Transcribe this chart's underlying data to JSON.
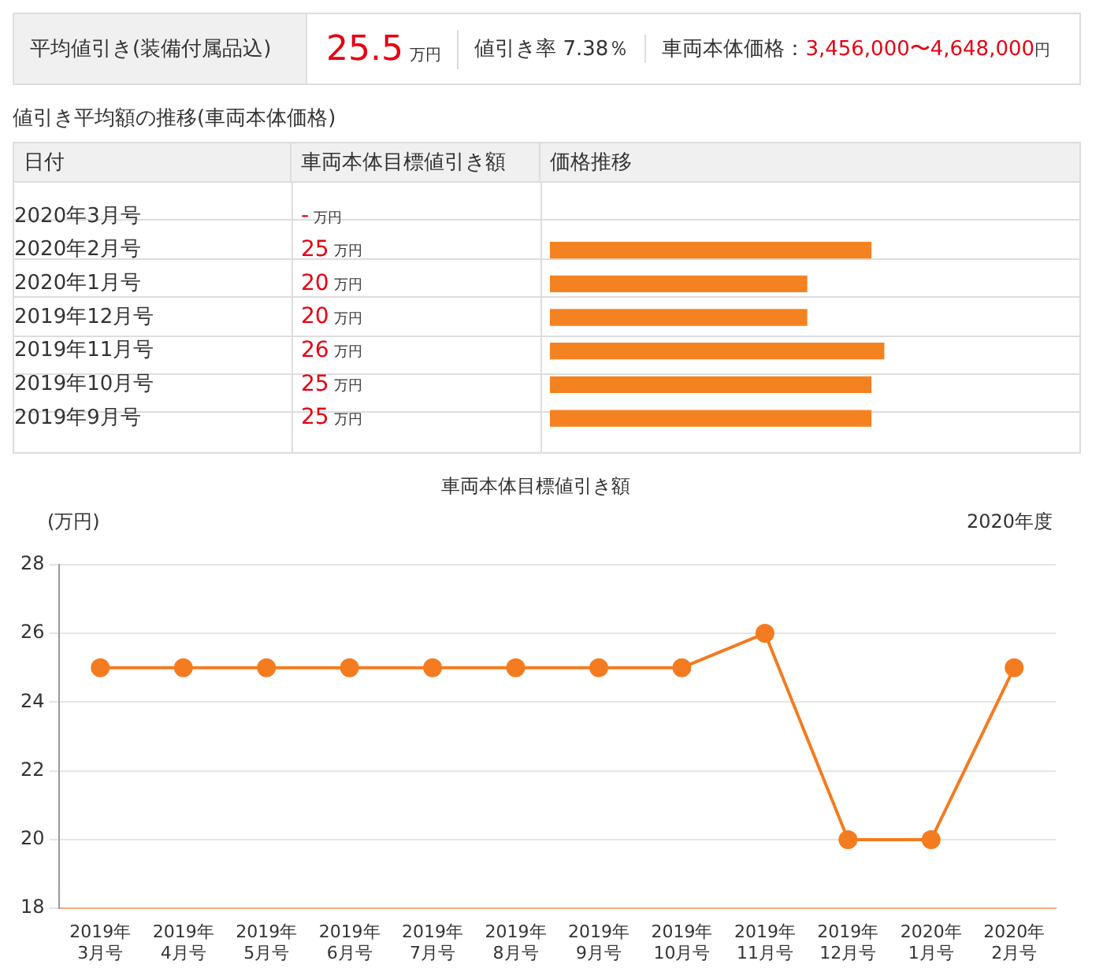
{
  "chart_data": [
    {
      "type": "other",
      "annotations": [
        "平均値引き(装備付属品込)",
        "25.5",
        "万円",
        "値引き率 7.38％",
        "車両本体価格：",
        "3,456,000〜4,648,000",
        "円"
      ]
    },
    {
      "type": "bar",
      "orientation": "horizontal",
      "title": "値引き平均額の推移(車両本体価格)",
      "annotations": [
        "日付",
        "車両本体目標値引き額",
        "価格推移"
      ],
      "categories": [
        "2020年3月号",
        "2020年2月号",
        "2020年1月号",
        "2019年12月号",
        "2019年11月号",
        "2019年10月号",
        "2019年9月号"
      ],
      "values": [
        null,
        25,
        20,
        20,
        26,
        25,
        25
      ],
      "value_labels": [
        "- 万円",
        "25 万円",
        "20 万円",
        "20 万円",
        "26 万円",
        "25 万円",
        "25 万円"
      ],
      "color": "#f58220"
    },
    {
      "type": "line",
      "title": "車両本体目標値引き額",
      "ylabel": "(万円)",
      "annotations": [
        "2020年度"
      ],
      "categories": [
        "2019年\n3月号",
        "2019年\n4月号",
        "2019年\n5月号",
        "2019年\n6月号",
        "2019年\n7月号",
        "2019年\n8月号",
        "2019年\n9月号",
        "2019年\n10月号",
        "2019年\n11月号",
        "2019年\n12月号",
        "2020年\n1月号",
        "2020年\n2月号"
      ],
      "series": [
        {
          "color": "#f47b20",
          "values": [
            25,
            25,
            25,
            25,
            25,
            25,
            25,
            25,
            26,
            20,
            20,
            25
          ]
        }
      ],
      "ylim": [
        18,
        28
      ],
      "yticks": [
        18,
        20,
        22,
        24,
        26,
        28
      ],
      "grid": "y",
      "marker": "circle",
      "line_style": "solid",
      "legend": false
    }
  ]
}
